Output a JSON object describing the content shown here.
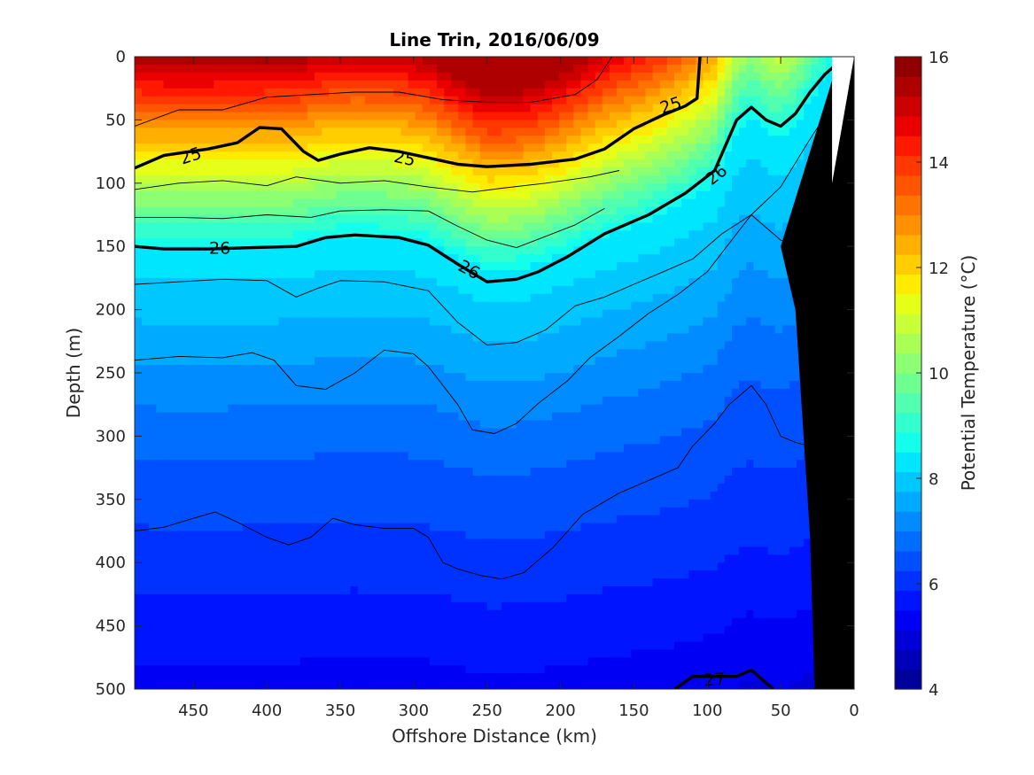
{
  "chart_data": {
    "type": "contour-section",
    "title": "Line Trin, 2016/06/09",
    "xlabel": "Offshore Distance (km)",
    "ylabel": "Depth (m)",
    "colorbar_label": "Potential Temperature (°C)",
    "x_range": [
      490,
      0
    ],
    "x_reversed": true,
    "y_range": [
      0,
      500
    ],
    "y_reversed": true,
    "x_ticks": [
      "450",
      "400",
      "350",
      "300",
      "250",
      "200",
      "150",
      "100",
      "50",
      "0"
    ],
    "y_ticks": [
      "0",
      "50",
      "100",
      "150",
      "200",
      "250",
      "300",
      "350",
      "400",
      "450",
      "500"
    ],
    "colorbar_range": [
      4,
      16
    ],
    "colorbar_ticks": [
      "4",
      "6",
      "8",
      "10",
      "12",
      "14",
      "16"
    ],
    "colorbar_colors": [
      "#00009b",
      "#0000b9",
      "#0000d7",
      "#0000f5",
      "#0014ff",
      "#0032ff",
      "#0050ff",
      "#006eff",
      "#008cff",
      "#00aaff",
      "#00c8ff",
      "#00e6ff",
      "#14ffeb",
      "#32ffcd",
      "#50ffaf",
      "#6eff91",
      "#8cff73",
      "#aaff55",
      "#c8ff37",
      "#e6ff19",
      "#ffeb00",
      "#ffcd00",
      "#ffaf00",
      "#ff9100",
      "#ff7300",
      "#ff5500",
      "#ff3700",
      "#ff1900",
      "#eb0000",
      "#cd0000",
      "#af0000",
      "#910000"
    ],
    "isopycnals": [
      {
        "label": "25",
        "bold": true,
        "points": [
          [
            490,
            88
          ],
          [
            470,
            78
          ],
          [
            440,
            73
          ],
          [
            420,
            68
          ],
          [
            405,
            56
          ],
          [
            390,
            57
          ],
          [
            375,
            75
          ],
          [
            365,
            82
          ],
          [
            350,
            77
          ],
          [
            330,
            72
          ],
          [
            310,
            75
          ],
          [
            290,
            80
          ],
          [
            270,
            85
          ],
          [
            250,
            87
          ],
          [
            220,
            85
          ],
          [
            190,
            81
          ],
          [
            170,
            73
          ],
          [
            150,
            57
          ],
          [
            130,
            46
          ],
          [
            115,
            39
          ],
          [
            107,
            33
          ],
          [
            105,
            0
          ]
        ]
      },
      {
        "label": "26",
        "bold": true,
        "points": [
          [
            490,
            150
          ],
          [
            470,
            152
          ],
          [
            440,
            152
          ],
          [
            410,
            151
          ],
          [
            380,
            150
          ],
          [
            360,
            143
          ],
          [
            340,
            141
          ],
          [
            310,
            143
          ],
          [
            290,
            149
          ],
          [
            270,
            164
          ],
          [
            250,
            178
          ],
          [
            230,
            176
          ],
          [
            215,
            170
          ],
          [
            195,
            158
          ],
          [
            170,
            140
          ],
          [
            140,
            125
          ],
          [
            115,
            108
          ],
          [
            95,
            90
          ],
          [
            80,
            50
          ],
          [
            70,
            40
          ],
          [
            60,
            50
          ],
          [
            50,
            55
          ],
          [
            40,
            45
          ],
          [
            30,
            28
          ],
          [
            20,
            14
          ],
          [
            10,
            4
          ]
        ]
      },
      {
        "label": "27",
        "bold": true,
        "points": [
          [
            122,
            500
          ],
          [
            110,
            490
          ],
          [
            80,
            490
          ],
          [
            70,
            485
          ],
          [
            55,
            500
          ]
        ]
      },
      {
        "label": "",
        "bold": false,
        "points": [
          [
            490,
            55
          ],
          [
            460,
            42
          ],
          [
            430,
            42
          ],
          [
            400,
            32
          ],
          [
            370,
            30
          ],
          [
            340,
            28
          ],
          [
            310,
            28
          ],
          [
            280,
            34
          ],
          [
            250,
            36
          ],
          [
            220,
            36
          ],
          [
            190,
            30
          ],
          [
            175,
            18
          ],
          [
            165,
            0
          ]
        ]
      },
      {
        "label": "",
        "bold": false,
        "points": [
          [
            490,
            105
          ],
          [
            460,
            100
          ],
          [
            430,
            98
          ],
          [
            400,
            102
          ],
          [
            380,
            95
          ],
          [
            350,
            100
          ],
          [
            320,
            98
          ],
          [
            290,
            103
          ],
          [
            260,
            107
          ],
          [
            240,
            104
          ],
          [
            210,
            100
          ],
          [
            180,
            95
          ],
          [
            160,
            90
          ]
        ]
      },
      {
        "label": "",
        "bold": false,
        "points": [
          [
            490,
            127
          ],
          [
            460,
            127
          ],
          [
            430,
            128
          ],
          [
            400,
            125
          ],
          [
            370,
            127
          ],
          [
            350,
            122
          ],
          [
            320,
            121
          ],
          [
            290,
            122
          ],
          [
            270,
            134
          ],
          [
            250,
            145
          ],
          [
            230,
            151
          ],
          [
            210,
            142
          ],
          [
            190,
            133
          ],
          [
            170,
            120
          ]
        ]
      },
      {
        "label": "",
        "bold": false,
        "points": [
          [
            490,
            180
          ],
          [
            460,
            178
          ],
          [
            430,
            176
          ],
          [
            400,
            177
          ],
          [
            380,
            190
          ],
          [
            365,
            183
          ],
          [
            350,
            177
          ],
          [
            320,
            178
          ],
          [
            290,
            185
          ],
          [
            270,
            210
          ],
          [
            250,
            228
          ],
          [
            230,
            226
          ],
          [
            210,
            216
          ],
          [
            190,
            197
          ],
          [
            170,
            190
          ],
          [
            150,
            180
          ],
          [
            130,
            170
          ],
          [
            110,
            160
          ],
          [
            90,
            140
          ],
          [
            70,
            125
          ],
          [
            50,
            103
          ],
          [
            30,
            65
          ],
          [
            10,
            30
          ]
        ]
      },
      {
        "label": "",
        "bold": false,
        "points": [
          [
            490,
            240
          ],
          [
            460,
            237
          ],
          [
            430,
            238
          ],
          [
            410,
            234
          ],
          [
            395,
            240
          ],
          [
            380,
            260
          ],
          [
            360,
            263
          ],
          [
            340,
            250
          ],
          [
            320,
            232
          ],
          [
            300,
            235
          ],
          [
            290,
            245
          ],
          [
            270,
            275
          ],
          [
            260,
            295
          ],
          [
            245,
            298
          ],
          [
            230,
            290
          ],
          [
            215,
            274
          ],
          [
            195,
            256
          ],
          [
            180,
            238
          ],
          [
            160,
            221
          ],
          [
            140,
            203
          ],
          [
            120,
            188
          ],
          [
            100,
            170
          ],
          [
            80,
            140
          ],
          [
            70,
            125
          ],
          [
            50,
            145
          ],
          [
            40,
            150
          ],
          [
            25,
            115
          ],
          [
            15,
            100
          ]
        ]
      },
      {
        "label": "",
        "bold": false,
        "points": [
          [
            490,
            375
          ],
          [
            470,
            372
          ],
          [
            450,
            365
          ],
          [
            435,
            360
          ],
          [
            420,
            368
          ],
          [
            400,
            380
          ],
          [
            385,
            386
          ],
          [
            370,
            380
          ],
          [
            355,
            365
          ],
          [
            340,
            370
          ],
          [
            320,
            373
          ],
          [
            300,
            373
          ],
          [
            290,
            380
          ],
          [
            280,
            400
          ],
          [
            270,
            405
          ],
          [
            255,
            410
          ],
          [
            240,
            413
          ],
          [
            225,
            408
          ],
          [
            205,
            388
          ],
          [
            185,
            362
          ],
          [
            160,
            345
          ],
          [
            140,
            335
          ],
          [
            120,
            325
          ],
          [
            110,
            308
          ],
          [
            95,
            290
          ],
          [
            85,
            275
          ],
          [
            80,
            270
          ],
          [
            70,
            260
          ],
          [
            60,
            275
          ],
          [
            50,
            300
          ],
          [
            40,
            305
          ],
          [
            30,
            308
          ],
          [
            25,
            320
          ]
        ]
      }
    ],
    "bathymetry": [
      [
        0,
        0
      ],
      [
        0,
        500
      ],
      [
        27,
        500
      ],
      [
        30,
        380
      ],
      [
        40,
        200
      ],
      [
        50,
        150
      ],
      [
        10,
        0
      ]
    ]
  }
}
